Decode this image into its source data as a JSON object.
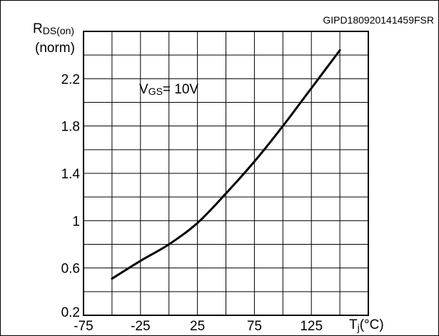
{
  "figure_code": "GIPD180920141459FSR",
  "chart_data": {
    "type": "line",
    "ylabel_main": "R",
    "ylabel_sub": "DS(on)",
    "ylabel_unit": "(norm)",
    "xlabel_main": "T",
    "xlabel_sub": "j",
    "xlabel_unit": "(°C)",
    "annotation_main": "V",
    "annotation_sub": "GS",
    "annotation_value": "= 10V",
    "xlim": [
      -75,
      175
    ],
    "ylim": [
      0.2,
      2.6
    ],
    "grid": true,
    "xticks": [
      {
        "value": -75,
        "label": "-75"
      },
      {
        "value": -25,
        "label": "-25"
      },
      {
        "value": 25,
        "label": "25"
      },
      {
        "value": 75,
        "label": "75"
      },
      {
        "value": 125,
        "label": "125"
      }
    ],
    "yticks": [
      {
        "value": 0.2,
        "label": "0.2"
      },
      {
        "value": 0.6,
        "label": "0.6"
      },
      {
        "value": 1.0,
        "label": "1"
      },
      {
        "value": 1.4,
        "label": "1.4"
      },
      {
        "value": 1.8,
        "label": "1.8"
      },
      {
        "value": 2.2,
        "label": "2.2"
      }
    ],
    "series": [
      {
        "x": [
          -50,
          -25,
          0,
          25,
          50,
          75,
          100,
          125,
          150
        ],
        "y": [
          0.51,
          0.66,
          0.8,
          0.98,
          1.23,
          1.5,
          1.8,
          2.12,
          2.44
        ]
      }
    ]
  }
}
